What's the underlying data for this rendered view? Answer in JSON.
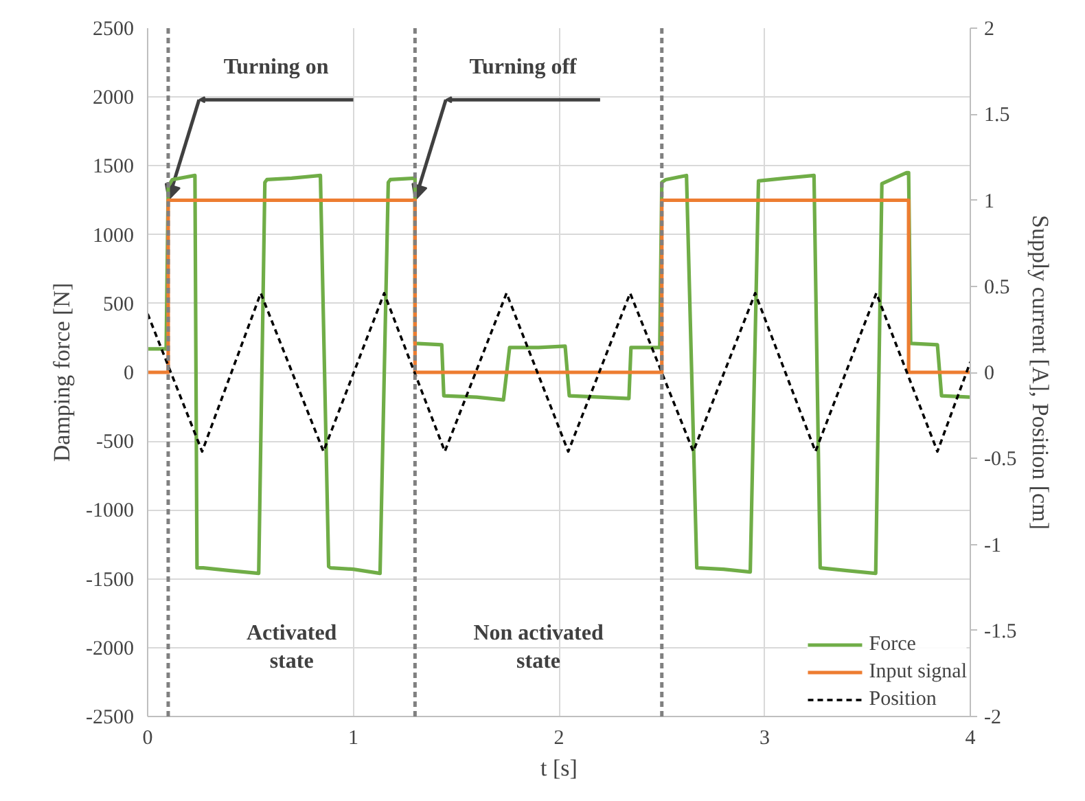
{
  "chart_data": {
    "type": "line",
    "xlabel": "t [s]",
    "ylabel": "Damping force [N]",
    "y2label": "Supply current [A], Position [cm]",
    "xlim": [
      0,
      4
    ],
    "xticks": [
      0,
      1,
      2,
      3,
      4
    ],
    "ylim": [
      -2500,
      2500
    ],
    "yticks": [
      -2500,
      -2000,
      -1500,
      -1000,
      -500,
      0,
      500,
      1000,
      1500,
      2000,
      2500
    ],
    "y2lim": [
      -2,
      2
    ],
    "y2ticks": [
      -2,
      -1.5,
      -1,
      -0.5,
      0,
      0.5,
      1,
      1.5,
      2
    ],
    "grid": true,
    "legend": "bottom right",
    "series": [
      {
        "name": "Force",
        "color": "#70ad47",
        "line_style": "solid",
        "x": [
          0,
          0.09,
          0.1,
          0.12,
          0.23,
          0.24,
          0.27,
          0.4,
          0.54,
          0.57,
          0.58,
          0.7,
          0.84,
          0.88,
          0.89,
          1.0,
          1.13,
          1.17,
          1.18,
          1.3,
          1.3,
          1.43,
          1.44,
          1.6,
          1.73,
          1.76,
          1.9,
          2.03,
          2.05,
          2.2,
          2.34,
          2.35,
          2.49,
          2.5,
          2.52,
          2.62,
          2.67,
          2.8,
          2.93,
          2.97,
          3.1,
          3.24,
          3.27,
          3.4,
          3.54,
          3.57,
          3.69,
          3.7,
          3.71,
          3.84,
          3.86,
          4.0
        ],
        "values": [
          170,
          170,
          1350,
          1400,
          1430,
          -1420,
          -1420,
          -1440,
          -1460,
          1380,
          1400,
          1410,
          1430,
          -1410,
          -1420,
          -1430,
          -1460,
          1380,
          1400,
          1410,
          210,
          200,
          -170,
          -180,
          -200,
          180,
          180,
          190,
          -170,
          -180,
          -190,
          180,
          180,
          1380,
          1400,
          1430,
          -1420,
          -1430,
          -1450,
          1390,
          1410,
          1430,
          -1420,
          -1440,
          -1460,
          1370,
          1450,
          1450,
          210,
          200,
          -170,
          -180
        ]
      },
      {
        "name": "Input signal",
        "type": "step",
        "axis": "y2",
        "color": "#ed7d31",
        "line_style": "solid",
        "x": [
          0,
          0.1,
          1.3,
          2.5,
          3.7,
          4.0
        ],
        "values": [
          0,
          1,
          0,
          1,
          0,
          0
        ]
      },
      {
        "name": "Position",
        "type": "line",
        "axis": "y2",
        "color": "#000000",
        "line_style": "dashed",
        "x": [
          0,
          0.265,
          0.55,
          0.855,
          1.15,
          1.445,
          1.745,
          2.045,
          2.346,
          2.653,
          2.954,
          3.247,
          3.543,
          3.84,
          4.0
        ],
        "values": [
          0.34,
          -0.46,
          0.46,
          -0.46,
          0.46,
          -0.46,
          0.46,
          -0.46,
          0.46,
          -0.46,
          0.46,
          -0.46,
          0.46,
          -0.46,
          0.06
        ]
      }
    ],
    "ref_lines": [
      {
        "axis": "x",
        "value": 0.1,
        "color": "#808080",
        "line_style": "dashed"
      },
      {
        "axis": "x",
        "value": 1.3,
        "color": "#808080",
        "line_style": "dashed"
      },
      {
        "axis": "x",
        "value": 2.5,
        "color": "#808080",
        "line_style": "dashed"
      }
    ],
    "annotations": [
      "Turning on",
      "Turning off",
      "Activated state",
      "Non activated state"
    ]
  }
}
